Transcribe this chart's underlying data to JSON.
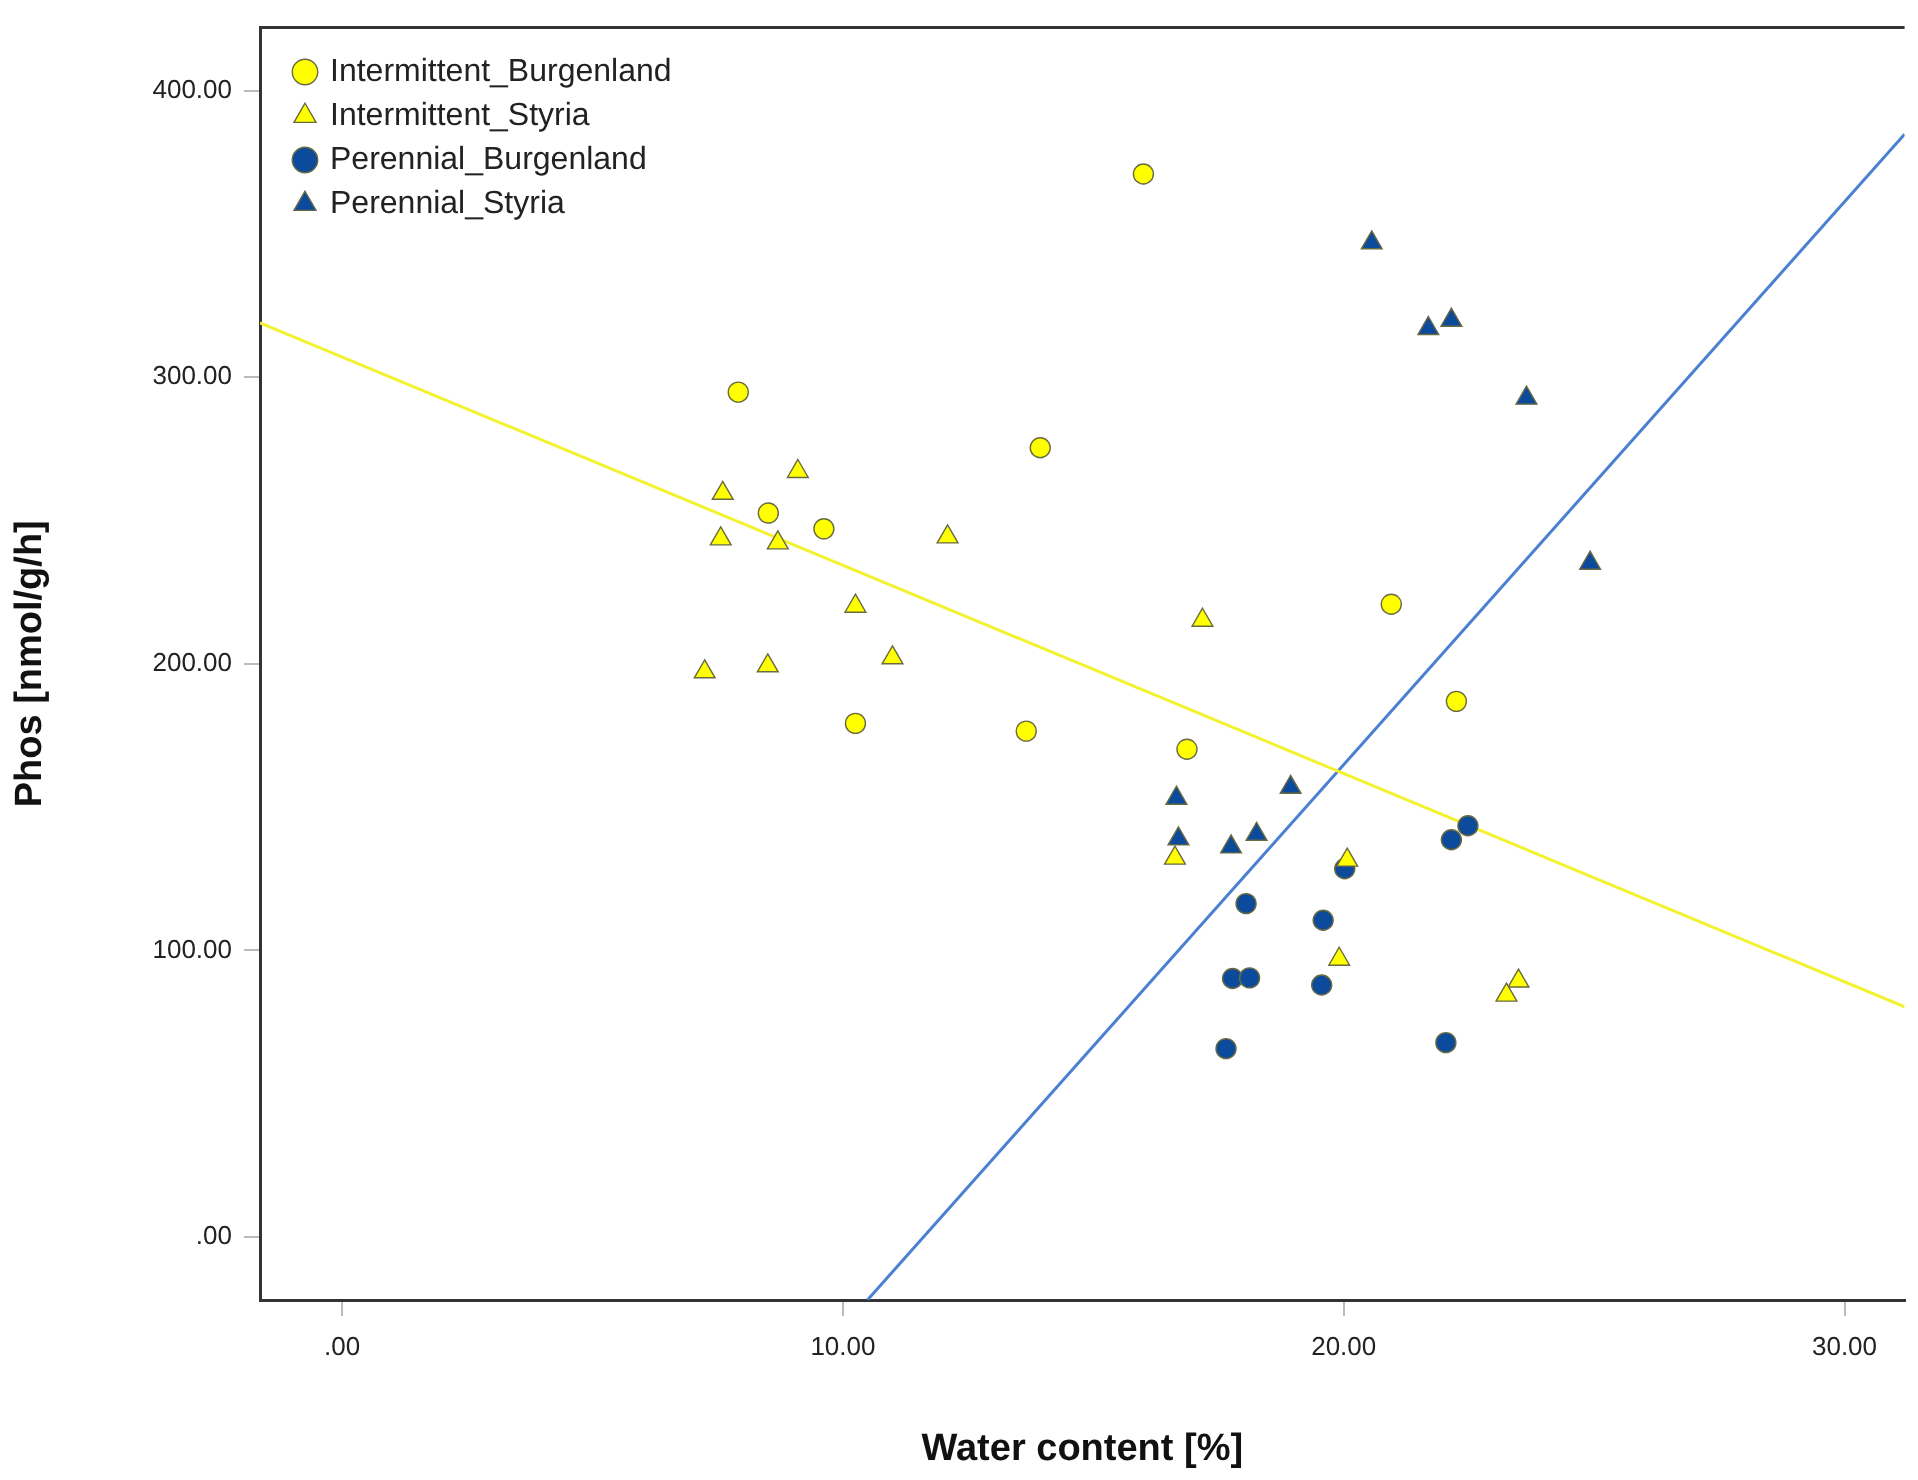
{
  "chart_data": {
    "type": "scatter",
    "xlabel": "Water content [%]",
    "ylabel": "Phos [nmol/g/h]",
    "xlim": [
      -1.64,
      31.2
    ],
    "ylim": [
      -22,
      422
    ],
    "xticks": [
      {
        "value": 0,
        "label": ".00"
      },
      {
        "value": 10,
        "label": "10.00"
      },
      {
        "value": 20,
        "label": "20.00"
      },
      {
        "value": 30,
        "label": "30.00"
      }
    ],
    "yticks": [
      {
        "value": 0,
        "label": ".00"
      },
      {
        "value": 100,
        "label": "100.00"
      },
      {
        "value": 200,
        "label": "200.00"
      },
      {
        "value": 300,
        "label": "300.00"
      },
      {
        "value": 400,
        "label": "400.00"
      }
    ],
    "grid": false,
    "legend": "top left",
    "series": [
      {
        "name": "Intermittent_Burgenland",
        "color": "#ffff00",
        "marker": "circle",
        "x": [
          7.91,
          8.51,
          9.62,
          10.25,
          13.66,
          13.94,
          16.0,
          16.87,
          20.95,
          22.25
        ],
        "values": [
          294.8,
          252.6,
          247.1,
          179.2,
          176.5,
          275.4,
          370.9,
          170.2,
          220.8,
          186.9
        ]
      },
      {
        "name": "Intermittent_Styria",
        "color": "#ffff00",
        "marker": "triangle",
        "x": [
          7.6,
          9.1,
          7.56,
          8.7,
          12.09,
          10.25,
          10.99,
          7.24,
          8.5,
          17.18,
          16.63,
          20.07,
          19.91,
          23.49,
          23.25
        ],
        "values": [
          259.5,
          267.1,
          243.6,
          242.2,
          244.3,
          220.1,
          202.1,
          197.2,
          199.3,
          215.2,
          132.2,
          131.5,
          96.9,
          89.3,
          84.4
        ]
      },
      {
        "name": "Perennial_Burgenland",
        "color": "#0c4a9c",
        "marker": "circle",
        "x": [
          22.15,
          22.48,
          20.02,
          18.05,
          19.59,
          17.78,
          18.12,
          19.56,
          17.65,
          22.04
        ],
        "values": [
          138.6,
          143.5,
          128.5,
          116.3,
          110.5,
          90.2,
          90.4,
          87.9,
          65.7,
          67.8
        ]
      },
      {
        "name": "Perennial_Styria",
        "color": "#0c4a9c",
        "marker": "triangle",
        "x": [
          20.56,
          21.69,
          22.15,
          23.65,
          24.92,
          16.66,
          16.7,
          17.75,
          18.26,
          18.94
        ],
        "values": [
          346.9,
          317.0,
          319.9,
          292.7,
          235.1,
          153.1,
          138.9,
          136.1,
          140.5,
          156.9
        ]
      },
      {
        "type": "line",
        "color": "#f2f230",
        "marker": "none",
        "x": [
          -1.64,
          31.2
        ],
        "values": [
          319.0,
          80.3
        ]
      },
      {
        "type": "line",
        "color": "#4a80d0",
        "marker": "none",
        "x": [
          10.49,
          31.2
        ],
        "values": [
          -22,
          384.8
        ]
      }
    ]
  }
}
